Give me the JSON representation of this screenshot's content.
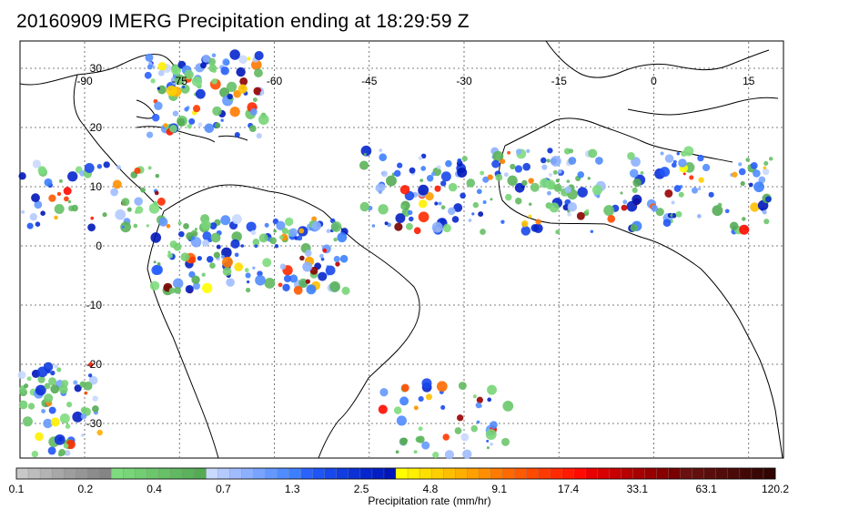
{
  "title": "20160909 IMERG Precipitation ending at 18:29:59 Z",
  "map": {
    "lon_ticks": [
      "-90",
      "-75",
      "-60",
      "-45",
      "-30",
      "-15",
      "0",
      "15"
    ],
    "lat_ticks": [
      "30",
      "20",
      "10",
      "0",
      "-10",
      "-20",
      "-30"
    ]
  },
  "colorbar": {
    "label": "Precipitation rate (mm/hr)",
    "tick_labels": [
      "0.1",
      "0.2",
      "0.4",
      "0.7",
      "1.3",
      "2.5",
      "4.8",
      "9.1",
      "17.4",
      "33.1",
      "63.1",
      "120.2"
    ],
    "colors": [
      "#c8c8c8",
      "#bdbdbd",
      "#b3b3b3",
      "#a8a8a8",
      "#9e9e9e",
      "#969696",
      "#8c8c8c",
      "#858585",
      "#7edc7e",
      "#78d578",
      "#72ce72",
      "#6cc76c",
      "#66c066",
      "#60b960",
      "#5ab25a",
      "#54ab54",
      "#c8d8ff",
      "#b4caff",
      "#a0bcff",
      "#8cb0ff",
      "#78a4ff",
      "#6498ff",
      "#508cff",
      "#3c80ff",
      "#2a62ff",
      "#2055f5",
      "#1848eb",
      "#103ce0",
      "#0a30d6",
      "#0526cc",
      "#031ec2",
      "#0016b8",
      "#ffff00",
      "#ffef00",
      "#ffdf00",
      "#ffcf00",
      "#ffbf00",
      "#ffaf00",
      "#ff9f00",
      "#ff8f00",
      "#ff7a00",
      "#ff6a00",
      "#ff5a00",
      "#ff4a00",
      "#ff3a00",
      "#ff2a00",
      "#ff1a00",
      "#ff0a00",
      "#e80000",
      "#d80000",
      "#c80000",
      "#b80000",
      "#a80000",
      "#980000",
      "#880000",
      "#780000",
      "#6a1010",
      "#62100e",
      "#5a0e0c",
      "#520c0a",
      "#4a0a08",
      "#420806",
      "#3a0604",
      "#320402"
    ]
  }
}
